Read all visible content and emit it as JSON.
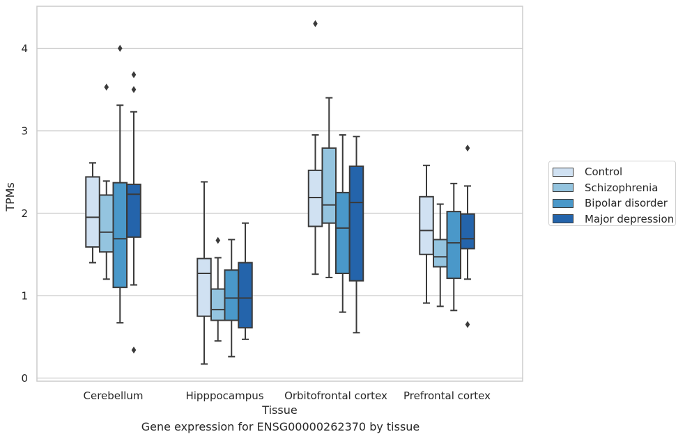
{
  "chart_data": {
    "type": "box",
    "title": "Gene expression for ENSG00000262370 by tissue",
    "xlabel": "Tissue",
    "ylabel": "TPMs",
    "ylim": [
      -0.05,
      4.5
    ],
    "yticks": [
      0,
      1,
      2,
      3,
      4
    ],
    "grid": "horizontal",
    "legend_position": "right",
    "categories": [
      "Cerebellum",
      "Hipppocampus",
      "Orbitofrontal cortex",
      "Prefrontal cortex"
    ],
    "series": [
      {
        "name": "Control",
        "color": "#d0e1f2",
        "boxes": [
          {
            "min": 1.4,
            "q1": 1.59,
            "median": 1.95,
            "q3": 2.44,
            "max": 2.61,
            "outliers": []
          },
          {
            "min": 0.17,
            "q1": 0.75,
            "median": 1.27,
            "q3": 1.45,
            "max": 2.38,
            "outliers": []
          },
          {
            "min": 1.26,
            "q1": 1.84,
            "median": 2.19,
            "q3": 2.52,
            "max": 2.95,
            "outliers": [
              4.3
            ]
          },
          {
            "min": 0.91,
            "q1": 1.5,
            "median": 1.79,
            "q3": 2.2,
            "max": 2.58,
            "outliers": []
          }
        ]
      },
      {
        "name": "Schizophrenia",
        "color": "#94c4df",
        "boxes": [
          {
            "min": 1.2,
            "q1": 1.53,
            "median": 1.77,
            "q3": 2.22,
            "max": 2.39,
            "outliers": [
              3.53
            ]
          },
          {
            "min": 0.45,
            "q1": 0.7,
            "median": 0.83,
            "q3": 1.08,
            "max": 1.46,
            "outliers": [
              1.67
            ]
          },
          {
            "min": 1.22,
            "q1": 1.88,
            "median": 2.1,
            "q3": 2.79,
            "max": 3.4,
            "outliers": []
          },
          {
            "min": 0.87,
            "q1": 1.35,
            "median": 1.47,
            "q3": 1.68,
            "max": 2.11,
            "outliers": []
          }
        ]
      },
      {
        "name": "Bipolar disorder",
        "color": "#4a98c9",
        "boxes": [
          {
            "min": 0.67,
            "q1": 1.1,
            "median": 1.69,
            "q3": 2.37,
            "max": 3.31,
            "outliers": [
              4.0
            ]
          },
          {
            "min": 0.26,
            "q1": 0.7,
            "median": 0.97,
            "q3": 1.31,
            "max": 1.68,
            "outliers": []
          },
          {
            "min": 0.8,
            "q1": 1.27,
            "median": 1.82,
            "q3": 2.25,
            "max": 2.95,
            "outliers": []
          },
          {
            "min": 0.82,
            "q1": 1.21,
            "median": 1.64,
            "q3": 2.02,
            "max": 2.36,
            "outliers": []
          }
        ]
      },
      {
        "name": "Major depression",
        "color": "#2464ab",
        "boxes": [
          {
            "min": 1.13,
            "q1": 1.71,
            "median": 2.23,
            "q3": 2.35,
            "max": 3.23,
            "outliers": [
              3.68,
              3.5,
              0.34
            ]
          },
          {
            "min": 0.47,
            "q1": 0.61,
            "median": 0.97,
            "q3": 1.4,
            "max": 1.88,
            "outliers": []
          },
          {
            "min": 0.55,
            "q1": 1.18,
            "median": 2.13,
            "q3": 2.57,
            "max": 2.93,
            "outliers": []
          },
          {
            "min": 1.2,
            "q1": 1.57,
            "median": 1.69,
            "q3": 1.99,
            "max": 2.33,
            "outliers": [
              2.79,
              0.65
            ]
          }
        ]
      }
    ]
  }
}
